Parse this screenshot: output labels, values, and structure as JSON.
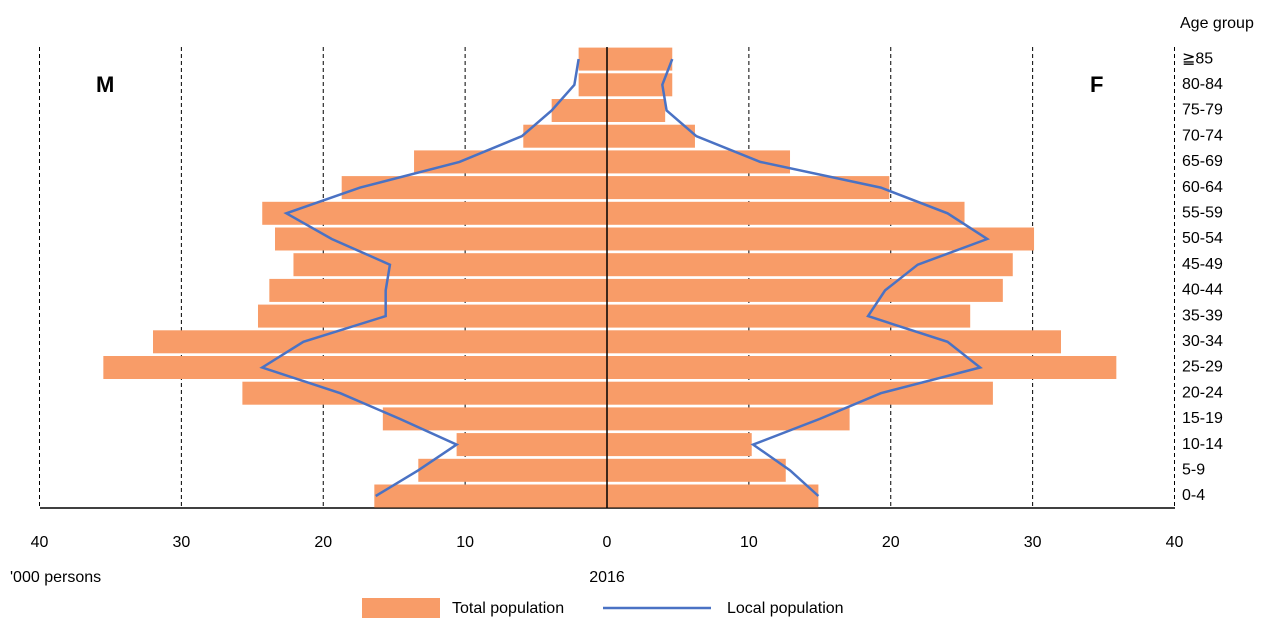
{
  "chart_data": {
    "type": "pyramid",
    "categories_title": "Age group",
    "left_label": "M",
    "right_label": "F",
    "unit_label": "'000 persons",
    "subtitle": "2016",
    "categories": [
      "0-4",
      "5-9",
      "10-14",
      "15-19",
      "20-24",
      "25-29",
      "30-34",
      "35-39",
      "40-44",
      "45-49",
      "50-54",
      "55-59",
      "60-64",
      "65-69",
      "70-74",
      "75-79",
      "80-84",
      "≧85"
    ],
    "series": [
      {
        "name": "Total population",
        "color": "#f89c68",
        "kind": "bar",
        "male": [
          16.4,
          13.3,
          10.6,
          15.8,
          25.7,
          35.5,
          32.0,
          24.6,
          23.8,
          22.1,
          23.4,
          24.3,
          18.7,
          13.6,
          5.9,
          3.9,
          2.0,
          2.0
        ],
        "female": [
          14.9,
          12.6,
          10.2,
          17.1,
          27.2,
          35.9,
          32.0,
          25.6,
          27.9,
          28.6,
          30.1,
          25.2,
          19.9,
          12.9,
          6.2,
          4.1,
          4.6,
          4.6
        ]
      },
      {
        "name": "Local population",
        "color": "#4a72c4",
        "kind": "line",
        "male": [
          16.3,
          13.3,
          10.6,
          14.6,
          18.8,
          24.3,
          21.4,
          15.6,
          15.6,
          15.3,
          19.4,
          22.6,
          17.4,
          10.4,
          6.0,
          3.9,
          2.3,
          2.0
        ],
        "female": [
          14.9,
          12.9,
          10.3,
          15.0,
          19.3,
          26.3,
          24.0,
          18.4,
          19.6,
          21.9,
          26.8,
          24.0,
          19.3,
          10.8,
          6.3,
          4.2,
          3.9,
          4.6
        ]
      }
    ],
    "xlim": [
      0,
      40
    ],
    "xticks_male": [
      0,
      10,
      20,
      30,
      40
    ],
    "xticks_female": [
      10,
      20,
      30,
      40
    ],
    "grid": true
  }
}
